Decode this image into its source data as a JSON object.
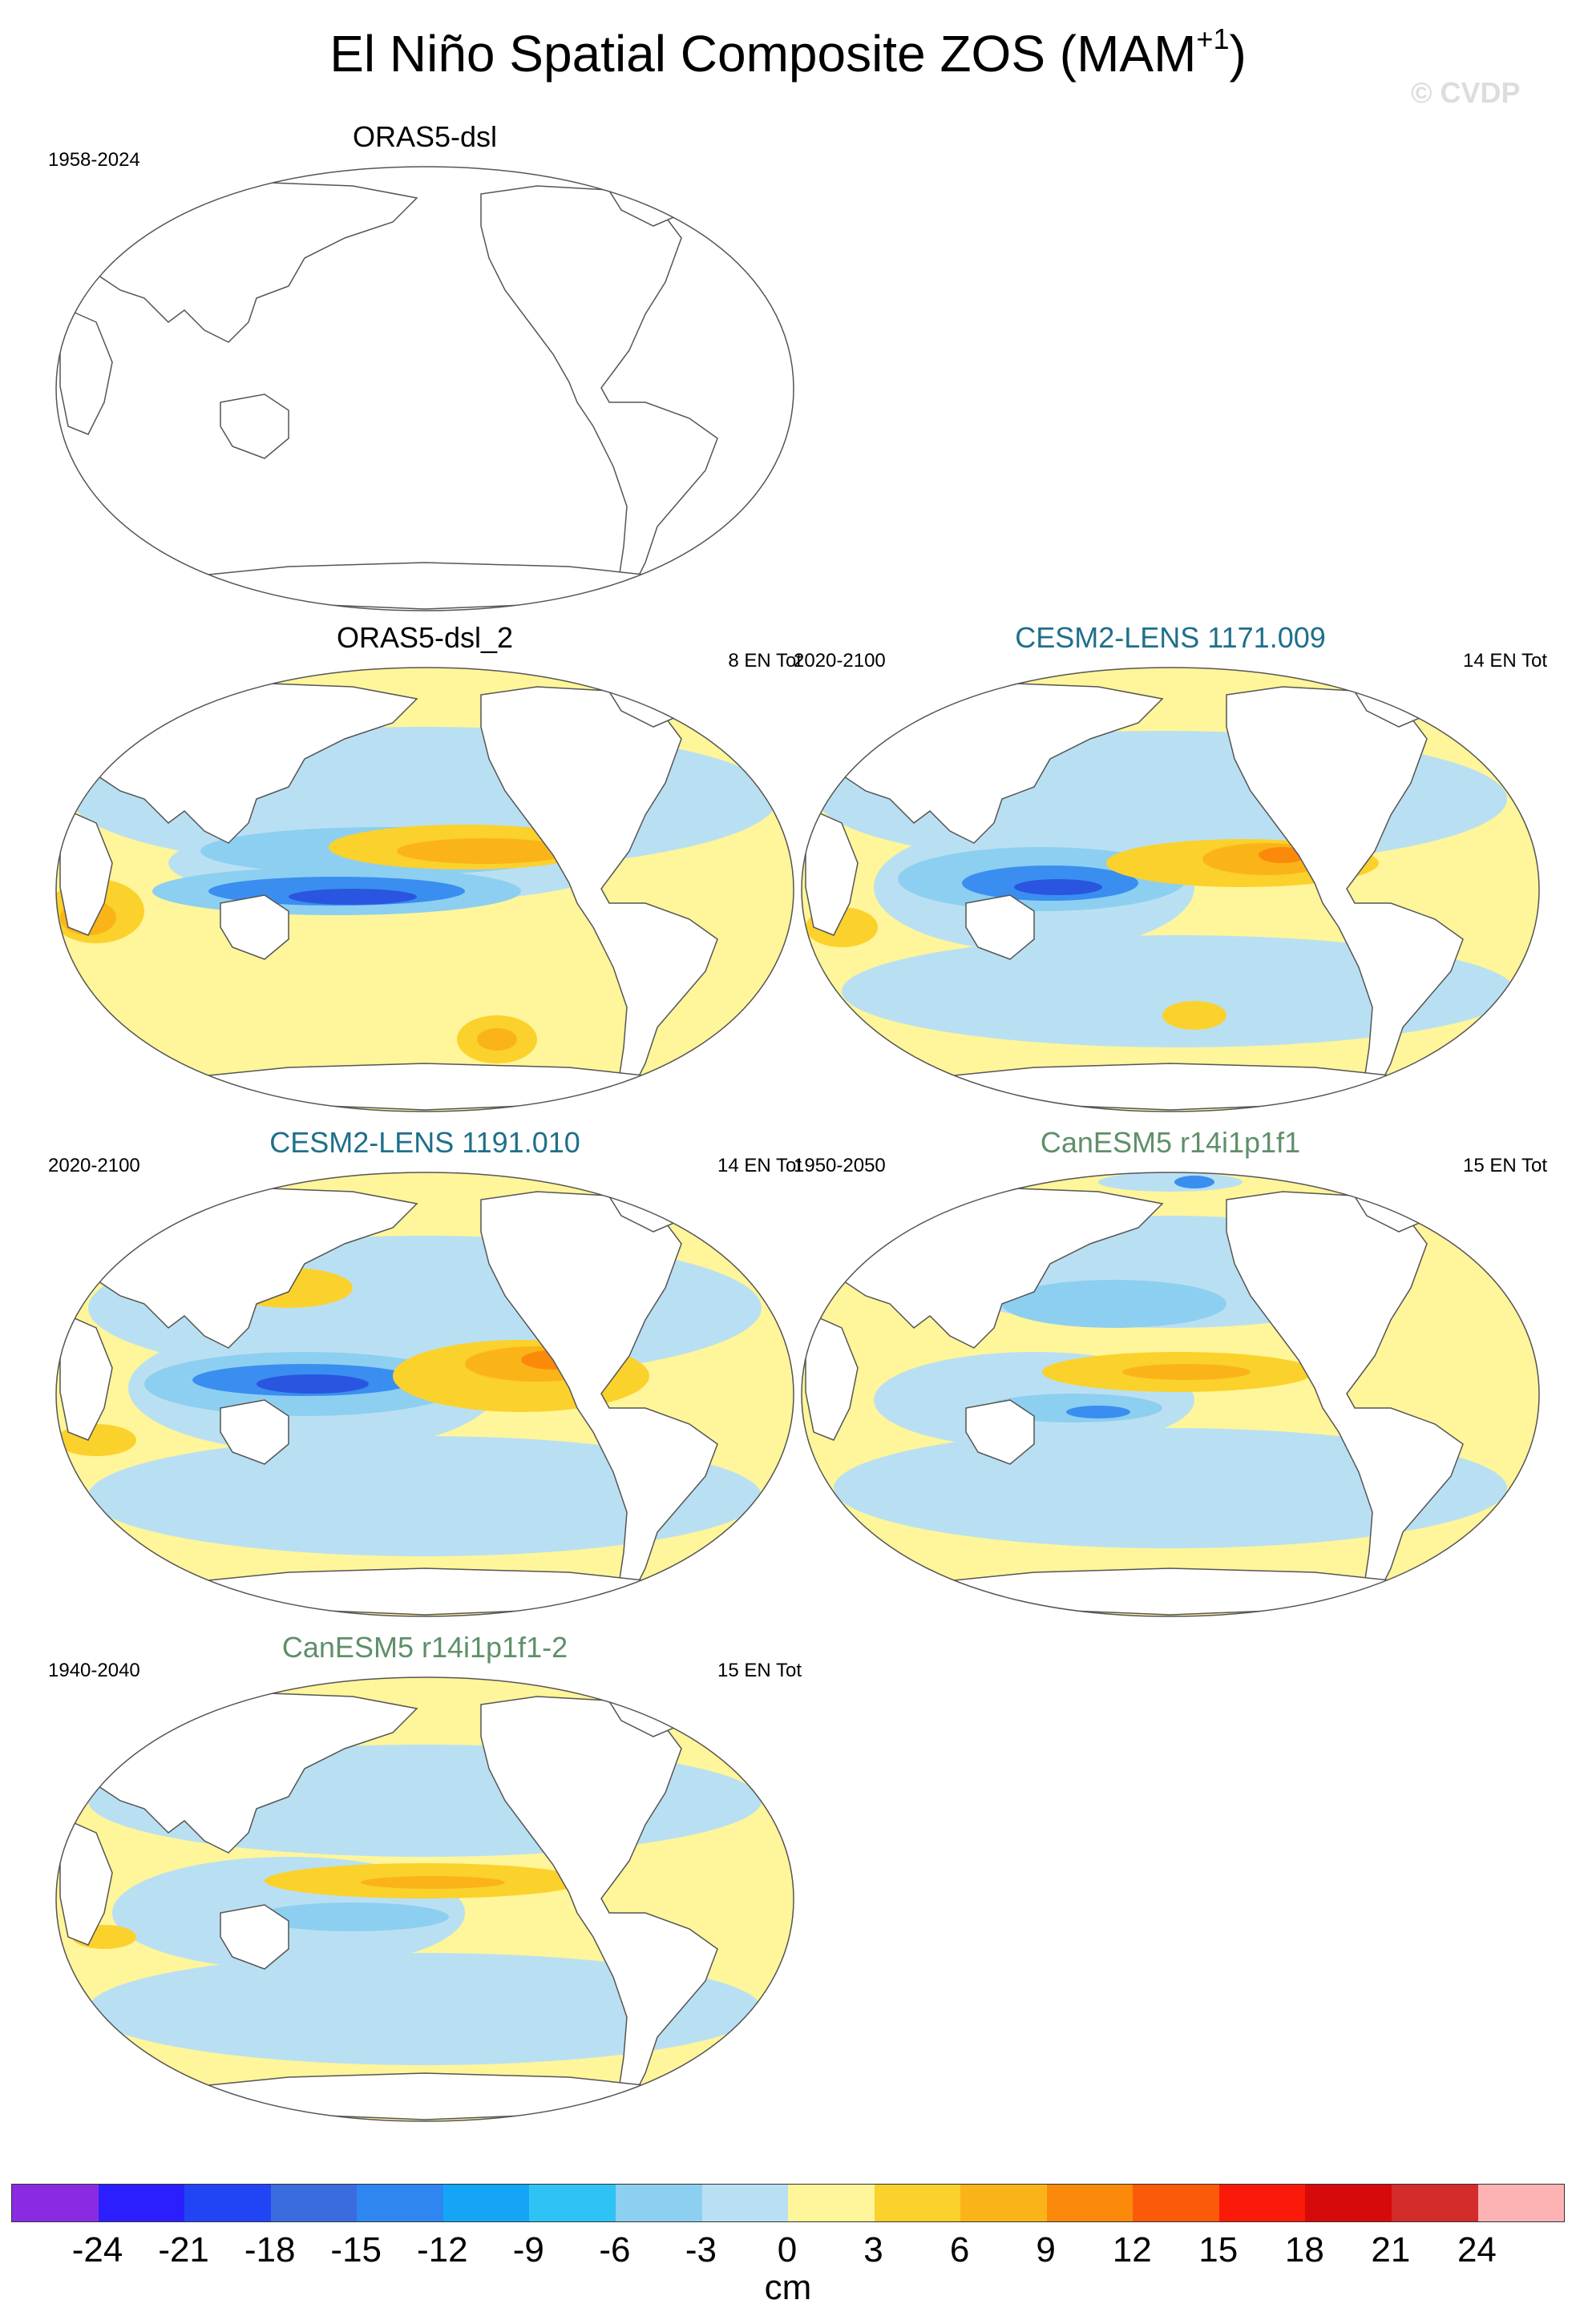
{
  "figure": {
    "title_main": "El Niño Spatial Composite ZOS (MAM",
    "title_sup": "+1",
    "title_close": ")",
    "watermark": "© CVDP"
  },
  "panels": [
    {
      "title": "ORAS5-dsl",
      "period": "1958-2024",
      "count": "",
      "title_color": "#000000",
      "pattern": "empty"
    },
    {
      "title": "ORAS5-dsl_2",
      "period": "",
      "count": "8 EN Tot",
      "title_color": "#000000",
      "pattern": "oras"
    },
    {
      "title": "CESM2-LENS 1171.009",
      "period": "2020-2100",
      "count": "14 EN Tot",
      "title_color": "#1f6f8b",
      "pattern": "cesm_a"
    },
    {
      "title": "CESM2-LENS 1191.010",
      "period": "2020-2100",
      "count": "14 EN Tot",
      "title_color": "#1f6f8b",
      "pattern": "cesm_b"
    },
    {
      "title": "CanESM5 r14i1p1f1",
      "period": "1950-2050",
      "count": "15 EN Tot",
      "title_color": "#5f8f6a",
      "pattern": "can_a"
    },
    {
      "title": "CanESM5 r14i1p1f1-2",
      "period": "1940-2040",
      "count": "15 EN Tot",
      "title_color": "#5f8f6a",
      "pattern": "can_b"
    }
  ],
  "colorbar": {
    "units": "cm",
    "ticks": [
      "-24",
      "-21",
      "-18",
      "-15",
      "-12",
      "-9",
      "-6",
      "-3",
      "0",
      "3",
      "6",
      "9",
      "12",
      "15",
      "18",
      "21",
      "24"
    ],
    "colors": [
      "#8a2be2",
      "#2b1fff",
      "#2145f5",
      "#3a6ce0",
      "#2f86f0",
      "#14a6f5",
      "#2fc2f5",
      "#8dcff0",
      "#b9e0f2",
      "#fff59a",
      "#fbd12c",
      "#fbb418",
      "#fb8a0a",
      "#fb5a0a",
      "#fb1a0a",
      "#d60a0a",
      "#d42b2b",
      "#fdb3b3"
    ]
  }
}
